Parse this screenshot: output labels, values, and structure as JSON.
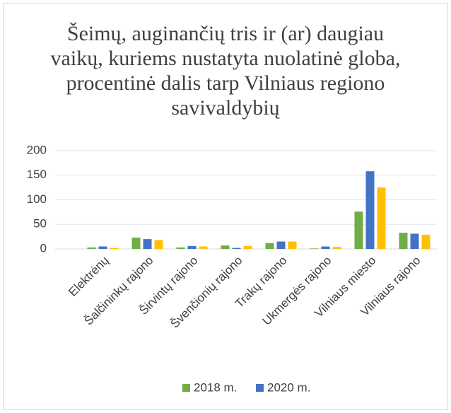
{
  "chart_data": {
    "type": "bar",
    "title": "Šeimų, auginančių tris ir (ar) daugiau vaikų, kuriems nustatyta nuolatinė globa, procentinė dalis tarp Vilniaus regiono savivaldybių",
    "categories": [
      "Elektrėnų",
      "Šalčininkų rajono",
      "Širvintų rajono",
      "Švenčionių rajono",
      "Trakų rajono",
      "Ukmergės rajono",
      "Vilniaus miesto",
      "Vilniaus rajono"
    ],
    "series": [
      {
        "name": "2018 m.",
        "color": "#70ad47",
        "values": [
          3,
          23,
          3,
          7,
          12,
          1,
          76,
          33
        ]
      },
      {
        "name": "2020 m.",
        "color": "#4472c4",
        "values": [
          5,
          20,
          6,
          2,
          15,
          5,
          158,
          31
        ]
      },
      {
        "color": "#ffc000",
        "values": [
          2,
          18,
          5,
          6,
          15,
          4,
          125,
          29
        ]
      }
    ],
    "ylim": [
      0,
      200
    ],
    "yticks": [
      0,
      50,
      100,
      150,
      200
    ],
    "grid": true,
    "legend": "bottom"
  }
}
